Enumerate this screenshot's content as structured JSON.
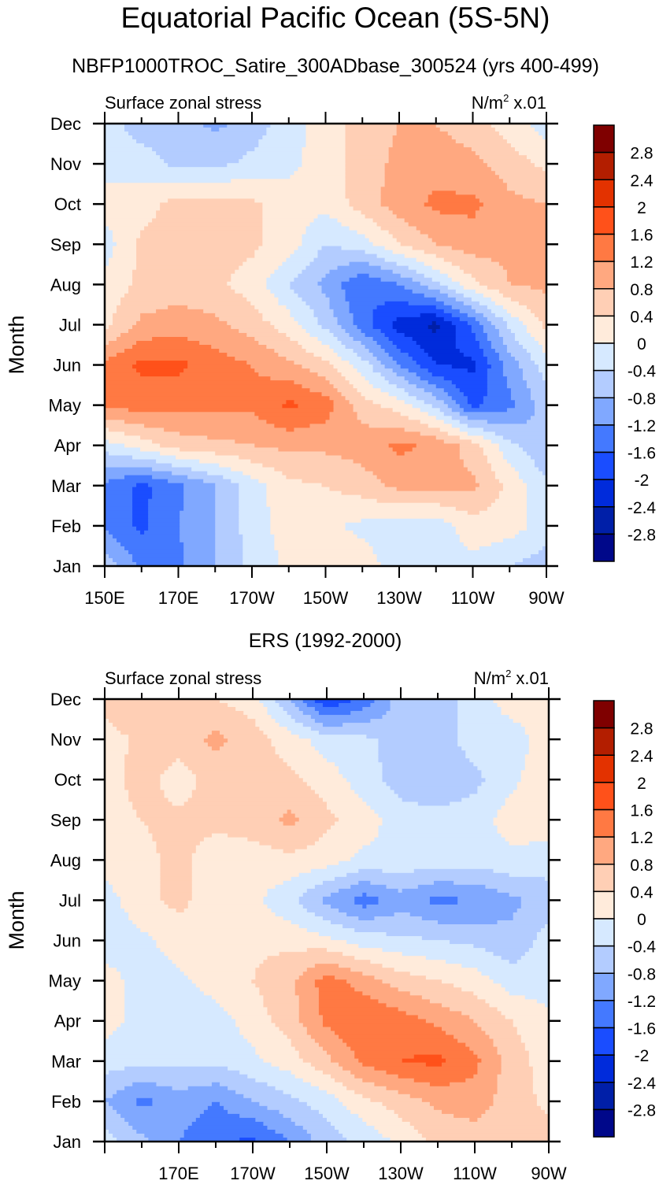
{
  "main_title": "Equatorial Pacific Ocean (5S-5N)",
  "chart_data": [
    {
      "type": "heatmap",
      "subtitle": "NBFP1000TROC_Satire_300ADbase_300524 (yrs 400-499)",
      "left_string": "Surface zonal stress",
      "right_string_base": "N/m",
      "right_string_sup": "2",
      "right_string_tail": " x.01",
      "ylabel": "Month",
      "xlabel": "",
      "x_ticks": [
        "150E",
        "170E",
        "170W",
        "150W",
        "130W",
        "110W",
        "90W"
      ],
      "y_ticks": [
        "Jan",
        "Feb",
        "Mar",
        "Apr",
        "May",
        "Jun",
        "Jul",
        "Aug",
        "Sep",
        "Oct",
        "Nov",
        "Dec"
      ],
      "xlim_deg_east": [
        150,
        270
      ],
      "x_grid_deg_east": [
        150,
        160,
        170,
        180,
        190,
        200,
        210,
        220,
        230,
        240,
        250,
        260,
        270
      ],
      "z_by_month": [
        [
          -0.5,
          -1.3,
          -1.3,
          -0.8,
          -0.3,
          0.1,
          0.2,
          0.2,
          -0.2,
          -0.2,
          -0.1,
          -0.4,
          -0.6
        ],
        [
          -1.3,
          -1.7,
          -1.2,
          -0.8,
          -0.2,
          0.2,
          0.1,
          -0.1,
          -0.2,
          -0.2,
          0.2,
          0.2,
          -0.2
        ],
        [
          -1.3,
          -1.7,
          -1.3,
          -0.8,
          -0.2,
          0.3,
          0.4,
          0.6,
          0.9,
          0.9,
          0.9,
          0.3,
          -0.3
        ],
        [
          -0.2,
          0.2,
          0.6,
          0.7,
          0.8,
          0.9,
          0.9,
          1.0,
          1.3,
          1.1,
          0.6,
          -0.3,
          -0.8
        ],
        [
          1.3,
          1.4,
          1.3,
          1.3,
          1.3,
          1.7,
          1.4,
          0.6,
          0.2,
          -0.5,
          -1.7,
          -1.3,
          -0.6
        ],
        [
          1.3,
          1.7,
          1.7,
          1.4,
          1.2,
          0.9,
          0.5,
          -0.2,
          -1.2,
          -2.0,
          -2.1,
          -1.0,
          -0.2
        ],
        [
          0.3,
          0.9,
          1.0,
          0.9,
          0.6,
          0.2,
          -0.5,
          -1.4,
          -2.2,
          -2.5,
          -1.5,
          -0.3,
          0.5
        ],
        [
          0.1,
          0.5,
          0.6,
          0.5,
          0.2,
          -0.4,
          -0.9,
          -1.6,
          -1.2,
          -0.5,
          0.3,
          0.8,
          0.9
        ],
        [
          -0.2,
          0.5,
          0.6,
          0.6,
          0.5,
          0.2,
          -0.4,
          -0.2,
          0.4,
          0.8,
          1.0,
          0.9,
          0.9
        ],
        [
          0.2,
          0.2,
          0.6,
          0.6,
          0.5,
          0.2,
          0.1,
          0.6,
          1.0,
          1.3,
          1.3,
          0.9,
          0.8
        ],
        [
          -0.2,
          -0.2,
          -0.5,
          -0.5,
          -0.3,
          -0.1,
          0.2,
          0.6,
          0.9,
          1.0,
          0.9,
          0.6,
          0.3
        ],
        [
          -0.2,
          -0.6,
          -0.6,
          -0.9,
          -0.6,
          -0.2,
          0.2,
          0.6,
          0.8,
          0.8,
          0.6,
          0.2,
          -0.2
        ]
      ]
    },
    {
      "type": "heatmap",
      "subtitle": "ERS (1992-2000)",
      "left_string": "Surface zonal stress",
      "right_string_base": "N/m",
      "right_string_sup": "2",
      "right_string_tail": " x.01",
      "ylabel": "Month",
      "xlabel": "",
      "x_ticks": [
        "170E",
        "170W",
        "150W",
        "130W",
        "110W",
        "90W"
      ],
      "y_ticks": [
        "Jan",
        "Feb",
        "Mar",
        "Apr",
        "May",
        "Jun",
        "Jul",
        "Aug",
        "Sep",
        "Oct",
        "Nov",
        "Dec"
      ],
      "xlim_deg_east": [
        150,
        270
      ],
      "x_grid_deg_east": [
        150,
        160,
        170,
        180,
        190,
        200,
        210,
        220,
        230,
        240,
        250,
        260,
        270
      ],
      "z_by_month": [
        [
          -0.2,
          -0.7,
          -1.2,
          -1.5,
          -1.7,
          -1.2,
          -0.6,
          -0.3,
          0.1,
          0.5,
          0.6,
          0.5,
          0.6
        ],
        [
          -0.8,
          -1.3,
          -1.0,
          -1.2,
          -0.8,
          -0.5,
          -0.2,
          0.3,
          0.6,
          0.9,
          1.0,
          0.6,
          0.3
        ],
        [
          -0.2,
          -0.3,
          -0.3,
          -0.3,
          -0.1,
          0.2,
          0.7,
          1.3,
          1.6,
          1.7,
          1.3,
          0.6,
          0.2
        ],
        [
          0.2,
          -0.2,
          -0.3,
          -0.2,
          0.2,
          0.6,
          1.3,
          1.6,
          1.4,
          1.1,
          0.8,
          0.4,
          0.1
        ],
        [
          0.2,
          -0.2,
          -0.1,
          0.2,
          0.4,
          0.7,
          1.4,
          1.0,
          0.6,
          0.4,
          0.2,
          -0.2,
          -0.2
        ],
        [
          -0.3,
          -0.1,
          0.2,
          0.2,
          0.3,
          0.3,
          0.1,
          -0.2,
          -0.3,
          -0.4,
          -0.5,
          -0.7,
          -0.2
        ],
        [
          -0.2,
          0.3,
          0.5,
          0.2,
          0.1,
          -0.3,
          -0.9,
          -1.4,
          -1.0,
          -1.3,
          -1.2,
          -0.9,
          -0.6
        ],
        [
          0.2,
          0.3,
          0.5,
          0.2,
          0.2,
          0.3,
          0.2,
          -0.1,
          -0.1,
          -0.2,
          -0.2,
          -0.1,
          -0.2
        ],
        [
          0.2,
          0.4,
          0.5,
          0.5,
          0.6,
          0.9,
          0.5,
          0.2,
          -0.2,
          -0.2,
          -0.2,
          0.2,
          0.2
        ],
        [
          0.2,
          0.6,
          0.2,
          0.6,
          0.5,
          0.5,
          0.2,
          -0.2,
          -0.6,
          -0.8,
          -0.5,
          -0.1,
          0.3
        ],
        [
          0.2,
          0.5,
          0.6,
          0.9,
          0.6,
          0.2,
          -0.2,
          -0.3,
          -0.6,
          -0.6,
          -0.2,
          -0.2,
          0.2
        ],
        [
          0.6,
          0.8,
          0.6,
          0.4,
          0.2,
          -0.8,
          -2.0,
          -1.5,
          -0.6,
          -0.6,
          -0.2,
          0.2,
          0.2
        ]
      ]
    }
  ],
  "colorbar": {
    "levels": [
      "2.8",
      "2.4",
      "2",
      "1.6",
      "1.2",
      "0.8",
      "0.4",
      "0",
      "-0.4",
      "-0.8",
      "-1.2",
      "-1.6",
      "-2",
      "-2.4",
      "-2.8"
    ],
    "level_values": [
      2.8,
      2.4,
      2.0,
      1.6,
      1.2,
      0.8,
      0.4,
      0.0,
      -0.4,
      -0.8,
      -1.2,
      -1.6,
      -2.0,
      -2.4,
      -2.8
    ],
    "colors_top_to_bottom": [
      "#7f0000",
      "#b31e00",
      "#e33200",
      "#ff511a",
      "#ff7943",
      "#ffa880",
      "#ffcfb5",
      "#ffebdb",
      "#d6e9ff",
      "#b3ccff",
      "#80a8ff",
      "#4479ff",
      "#1a4dff",
      "#002bdb",
      "#001fa8",
      "#00088a"
    ]
  }
}
